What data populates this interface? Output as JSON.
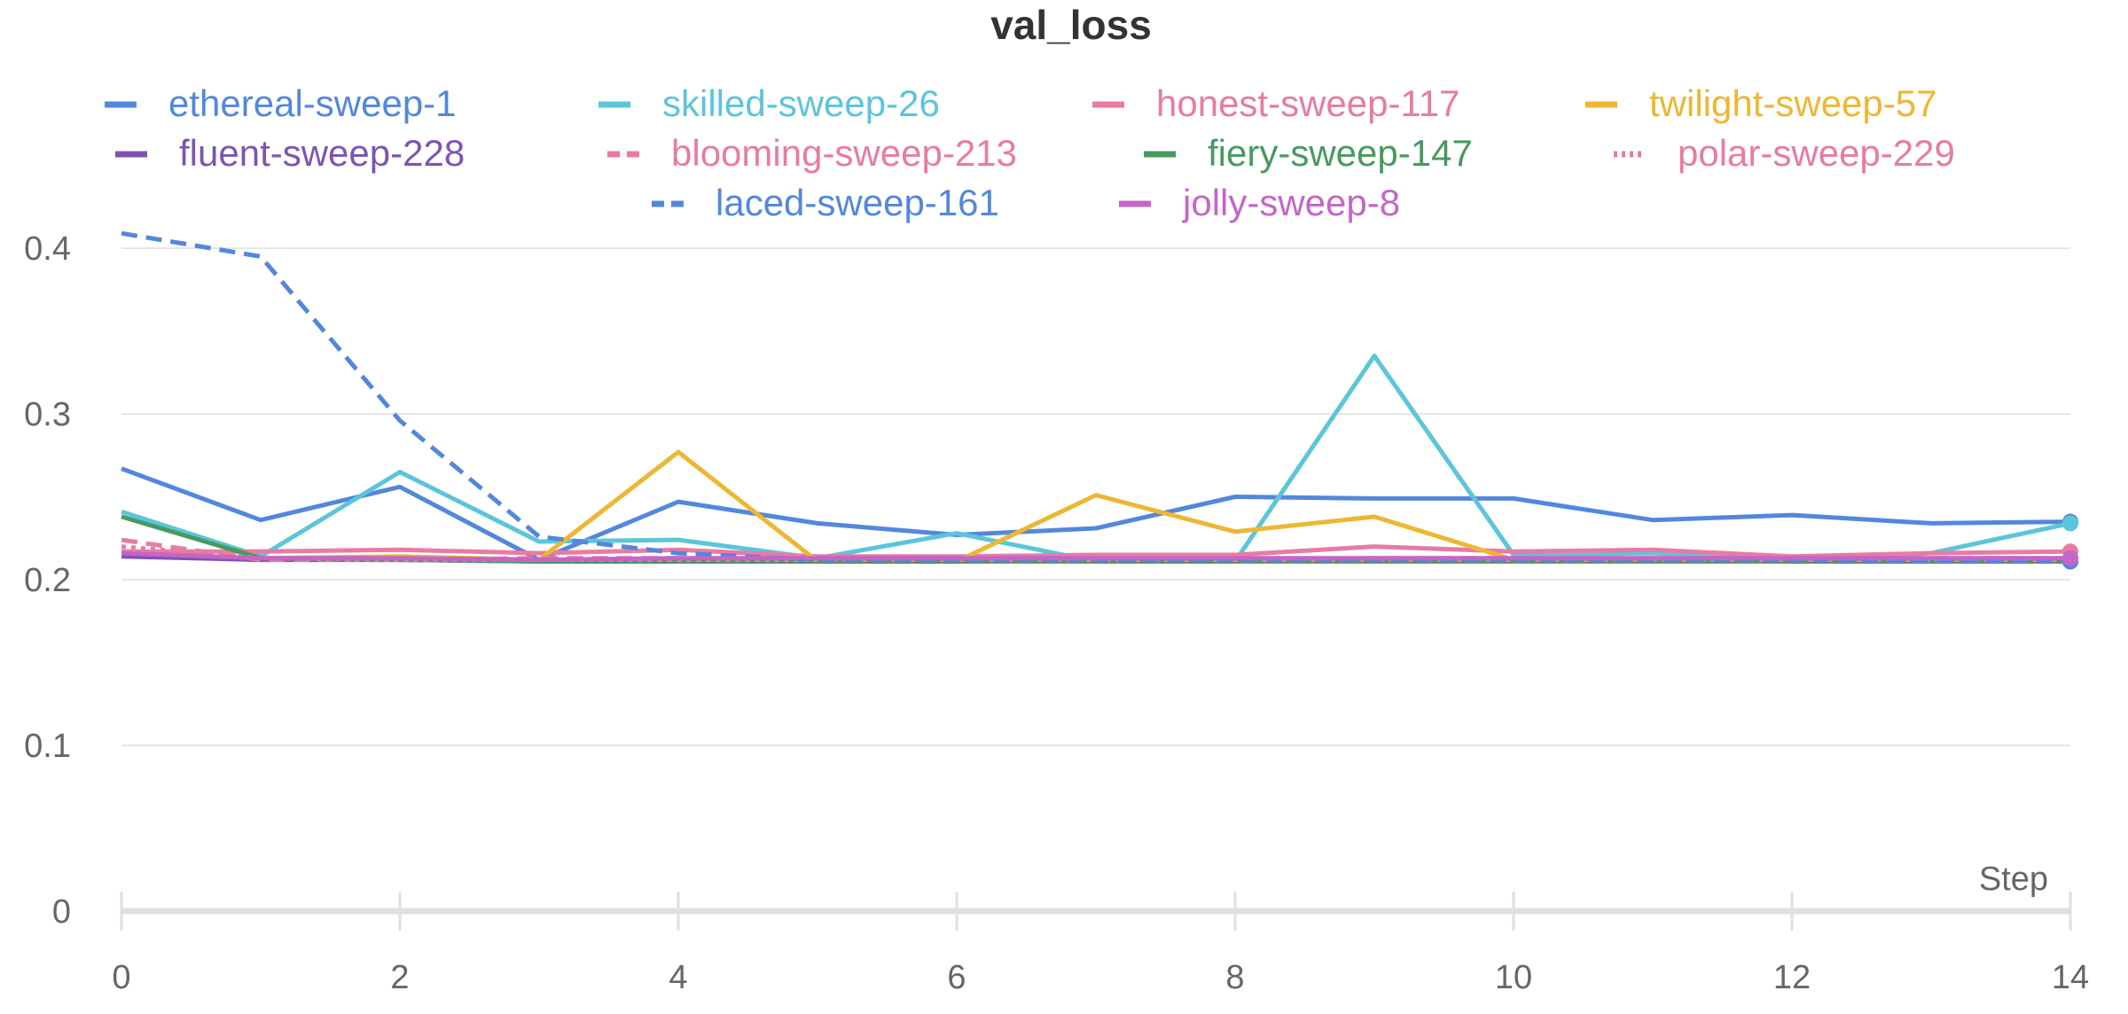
{
  "chart_data": {
    "type": "line",
    "title": "val_loss",
    "xlabel": "Step",
    "ylabel": "",
    "xlim": [
      0,
      14
    ],
    "ylim": [
      0,
      0.4
    ],
    "x_ticks": [
      "0",
      "2",
      "4",
      "6",
      "8",
      "10",
      "12",
      "14"
    ],
    "y_ticks": [
      "0",
      "0.1",
      "0.2",
      "0.3",
      "0.4"
    ],
    "grid": true,
    "legend_position": "top",
    "x": [
      0,
      1,
      2,
      3,
      4,
      5,
      6,
      7,
      8,
      9,
      10,
      11,
      12,
      13,
      14
    ],
    "series": [
      {
        "name": "ethereal-sweep-1",
        "color": "#5387dd",
        "dash": "solid",
        "values": [
          0.267,
          0.236,
          0.256,
          0.212,
          0.247,
          0.234,
          0.227,
          0.231,
          0.25,
          0.249,
          0.249,
          0.236,
          0.239,
          0.234,
          0.235
        ]
      },
      {
        "name": "skilled-sweep-26",
        "color": "#5bc5db",
        "dash": "solid",
        "values": [
          0.241,
          0.214,
          0.265,
          0.223,
          0.224,
          0.213,
          0.228,
          0.211,
          0.211,
          0.335,
          0.215,
          0.216,
          0.212,
          0.216,
          0.234
        ]
      },
      {
        "name": "honest-sweep-117",
        "color": "#e87ba4",
        "dash": "solid",
        "values": [
          0.217,
          0.217,
          0.218,
          0.216,
          0.218,
          0.214,
          0.214,
          0.215,
          0.215,
          0.22,
          0.217,
          0.218,
          0.214,
          0.216,
          0.217
        ]
      },
      {
        "name": "twilight-sweep-57",
        "color": "#edb732",
        "dash": "solid",
        "values": [
          0.215,
          0.213,
          0.214,
          0.212,
          0.277,
          0.211,
          0.211,
          0.251,
          0.229,
          0.238,
          0.212,
          0.213,
          0.212,
          0.212,
          0.212
        ]
      },
      {
        "name": "fluent-sweep-228",
        "color": "#7d54b2",
        "dash": "solid",
        "values": [
          0.214,
          0.212,
          0.212,
          0.211,
          0.211,
          0.211,
          0.211,
          0.212,
          0.212,
          0.212,
          0.212,
          0.212,
          0.211,
          0.211,
          0.211
        ]
      },
      {
        "name": "blooming-sweep-213",
        "color": "#e87ba4",
        "dash": "dashed",
        "values": [
          0.224,
          0.212,
          0.212,
          0.213,
          0.213,
          0.212,
          0.212,
          0.212,
          0.212,
          0.213,
          0.213,
          0.213,
          0.212,
          0.213,
          0.213
        ]
      },
      {
        "name": "fiery-sweep-147",
        "color": "#479a5f",
        "dash": "solid",
        "values": [
          0.238,
          0.213,
          0.212,
          0.211,
          0.211,
          0.211,
          0.211,
          0.211,
          0.211,
          0.211,
          0.211,
          0.211,
          0.211,
          0.211,
          0.211
        ]
      },
      {
        "name": "polar-sweep-229",
        "color": "#e87ba4",
        "dash": "dotted",
        "values": [
          0.22,
          0.213,
          0.212,
          0.212,
          0.212,
          0.212,
          0.212,
          0.212,
          0.212,
          0.212,
          0.212,
          0.212,
          0.212,
          0.212,
          0.212
        ]
      },
      {
        "name": "laced-sweep-161",
        "color": "#5387dd",
        "dash": "dashed",
        "values": [
          0.409,
          0.395,
          0.296,
          0.226,
          0.216,
          0.212,
          0.212,
          0.212,
          0.212,
          0.212,
          0.212,
          0.212,
          0.212,
          0.211,
          0.211
        ]
      },
      {
        "name": "jolly-sweep-8",
        "color": "#c565c7",
        "dash": "solid",
        "values": [
          0.216,
          0.213,
          0.213,
          0.212,
          0.213,
          0.213,
          0.213,
          0.213,
          0.213,
          0.213,
          0.213,
          0.213,
          0.213,
          0.213,
          0.213
        ]
      }
    ]
  }
}
